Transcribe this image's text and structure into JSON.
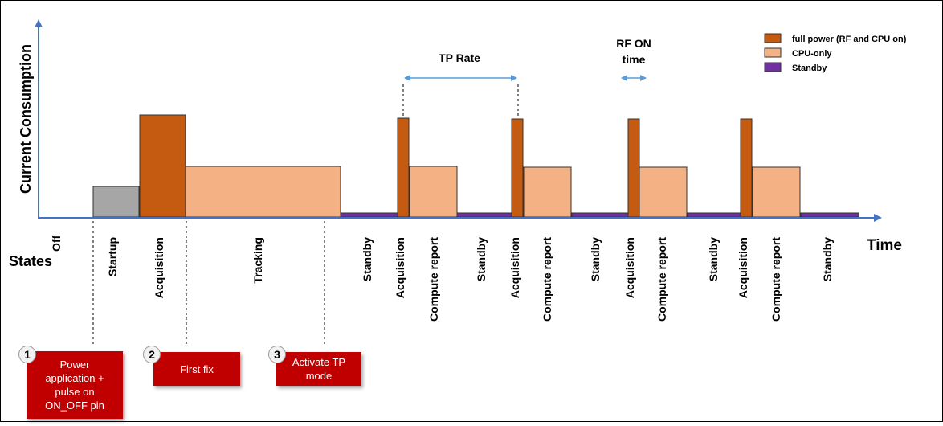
{
  "axes": {
    "y_label": "Current Consumption",
    "x_label": "Time",
    "states_label": "States",
    "off_label": "Off"
  },
  "legend": [
    {
      "label": "full power (RF and CPU on)",
      "color": "#c55a11"
    },
    {
      "label": "CPU-only",
      "color": "#f4b183"
    },
    {
      "label": "Standby",
      "color": "#7030a0"
    }
  ],
  "annotations": {
    "tp_rate": "TP Rate",
    "rf_on_line1": "RF ON",
    "rf_on_line2": "time"
  },
  "states": [
    "Startup",
    "Acquisition",
    "Tracking",
    "Standby",
    "Acquisition",
    "Compute report",
    "Standby",
    "Acquisition",
    "Compute report",
    "Standby",
    "Acquisition",
    "Compute report",
    "Standby",
    "Acquisition",
    "Compute report",
    "Standby"
  ],
  "callouts": [
    {
      "number": "1",
      "text_lines": [
        "Power",
        "application +",
        "pulse on",
        "ON_OFF pin"
      ]
    },
    {
      "number": "2",
      "text_lines": [
        "First fix"
      ]
    },
    {
      "number": "3",
      "text_lines": [
        "Activate TP",
        "mode"
      ]
    }
  ],
  "colors": {
    "full_power": "#c55a11",
    "cpu_only": "#f4b183",
    "standby": "#7030a0",
    "startup": "#a6a6a6",
    "axis": "#4472c4",
    "callout": "#c00000"
  }
}
